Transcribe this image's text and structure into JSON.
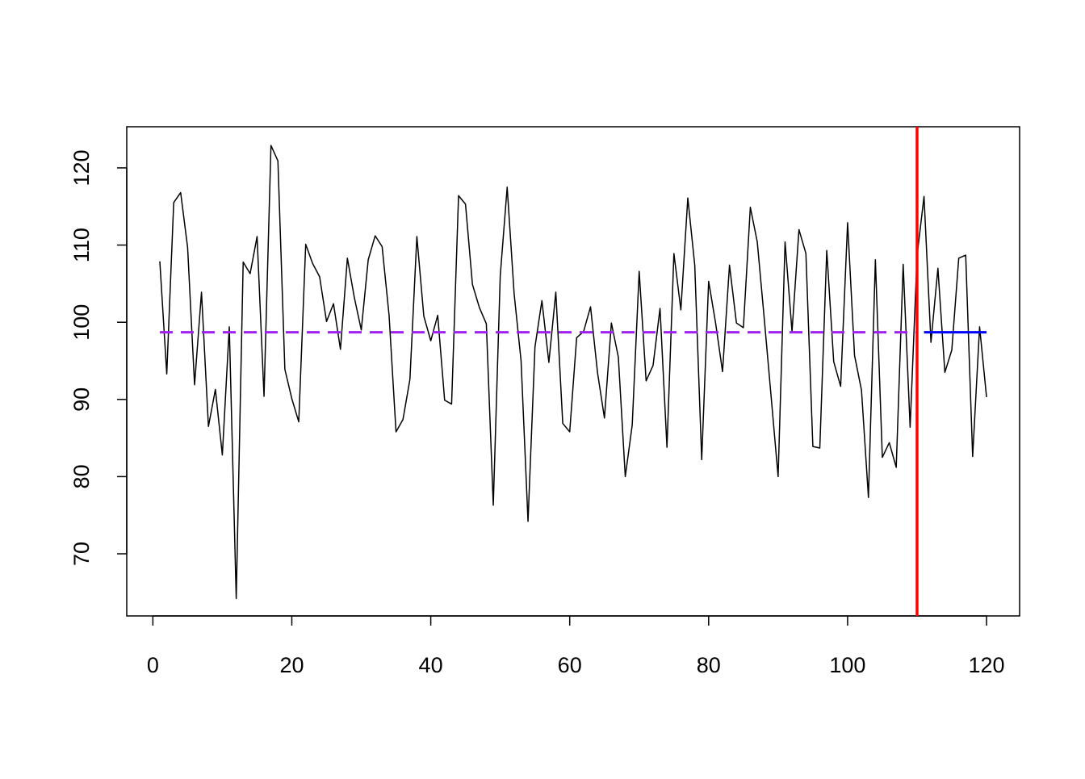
{
  "chart_data": {
    "type": "line",
    "x": [
      1,
      2,
      3,
      4,
      5,
      6,
      7,
      8,
      9,
      10,
      11,
      12,
      13,
      14,
      15,
      16,
      17,
      18,
      19,
      20,
      21,
      22,
      23,
      24,
      25,
      26,
      27,
      28,
      29,
      30,
      31,
      32,
      33,
      34,
      35,
      36,
      37,
      38,
      39,
      40,
      41,
      42,
      43,
      44,
      45,
      46,
      47,
      48,
      49,
      50,
      51,
      52,
      53,
      54,
      55,
      56,
      57,
      58,
      59,
      60,
      61,
      62,
      63,
      64,
      65,
      66,
      67,
      68,
      69,
      70,
      71,
      72,
      73,
      74,
      75,
      76,
      77,
      78,
      79,
      80,
      81,
      82,
      83,
      84,
      85,
      86,
      87,
      88,
      89,
      90,
      91,
      92,
      93,
      94,
      95,
      96,
      97,
      98,
      99,
      100,
      101,
      102,
      103,
      104,
      105,
      106,
      107,
      108,
      109,
      110,
      111,
      112,
      113,
      114,
      115,
      116,
      117,
      118,
      119,
      120
    ],
    "series": [
      {
        "color": "#000000",
        "width": 1.5,
        "dash": "solid",
        "values": [
          107.9,
          93.3,
          115.5,
          116.8,
          109.7,
          91.9,
          103.9,
          86.5,
          91.3,
          82.8,
          99.4,
          64.2,
          107.8,
          106.3,
          111.1,
          90.4,
          122.9,
          120.9,
          93.9,
          90.1,
          87.1,
          110.1,
          107.6,
          105.9,
          100.1,
          102.4,
          96.5,
          108.3,
          103.2,
          99.0,
          108.1,
          111.2,
          109.8,
          100.9,
          85.8,
          87.4,
          92.6,
          111.1,
          100.8,
          97.6,
          100.9,
          89.9,
          89.4,
          116.4,
          115.3,
          104.9,
          101.9,
          99.8,
          76.3,
          106.0,
          117.5,
          103.7,
          95.0,
          74.2,
          96.8,
          102.8,
          94.8,
          103.9,
          86.9,
          85.8,
          98.0,
          98.8,
          102.0,
          93.5,
          87.6,
          99.9,
          95.5,
          80.0,
          86.7,
          106.6,
          92.4,
          94.4,
          101.8,
          83.8,
          108.9,
          101.6,
          116.1,
          107.4,
          82.2,
          105.3,
          99.9,
          93.6,
          107.4,
          99.9,
          99.3,
          114.9,
          110.4,
          100.5,
          90.3,
          80.0,
          110.4,
          98.8,
          112.0,
          108.9,
          83.9,
          83.7,
          109.3,
          94.9,
          91.7,
          112.9,
          95.7,
          91.2,
          77.3,
          108.1,
          82.5,
          84.4,
          81.2,
          107.5,
          86.4,
          108.6,
          116.3,
          97.4,
          107.0,
          93.5,
          96.4,
          108.3,
          108.7,
          82.6,
          99.4,
          90.3
        ]
      },
      {
        "color": "#a020f0",
        "width": 3,
        "dash": "dashed",
        "values": [
          98.7,
          98.7,
          98.7,
          98.7,
          98.7,
          98.7,
          98.7,
          98.7,
          98.7,
          98.7,
          98.7,
          98.7,
          98.7,
          98.7,
          98.7,
          98.7,
          98.7,
          98.7,
          98.7,
          98.7,
          98.7,
          98.7,
          98.7,
          98.7,
          98.7,
          98.7,
          98.7,
          98.7,
          98.7,
          98.7,
          98.7,
          98.7,
          98.7,
          98.7,
          98.7,
          98.7,
          98.7,
          98.7,
          98.7,
          98.7,
          98.7,
          98.7,
          98.7,
          98.7,
          98.7,
          98.7,
          98.7,
          98.7,
          98.7,
          98.7,
          98.7,
          98.7,
          98.7,
          98.7,
          98.7,
          98.7,
          98.7,
          98.7,
          98.7,
          98.7,
          98.7,
          98.7,
          98.7,
          98.7,
          98.7,
          98.7,
          98.7,
          98.7,
          98.7,
          98.7,
          98.7,
          98.7,
          98.7,
          98.7,
          98.7,
          98.7,
          98.7,
          98.7,
          98.7,
          98.7,
          98.7,
          98.7,
          98.7,
          98.7,
          98.7,
          98.7,
          98.7,
          98.7,
          98.7,
          98.7,
          98.7,
          98.7,
          98.7,
          98.7,
          98.7,
          98.7,
          98.7,
          98.7,
          98.7,
          98.7,
          98.7,
          98.7,
          98.7,
          98.7,
          98.7,
          98.7,
          98.7,
          98.7,
          98.7,
          98.7,
          null,
          null,
          null,
          null,
          null,
          null,
          null,
          null,
          null,
          null
        ]
      },
      {
        "color": "#0000ff",
        "width": 3,
        "dash": "solid",
        "values": [
          null,
          null,
          null,
          null,
          null,
          null,
          null,
          null,
          null,
          null,
          null,
          null,
          null,
          null,
          null,
          null,
          null,
          null,
          null,
          null,
          null,
          null,
          null,
          null,
          null,
          null,
          null,
          null,
          null,
          null,
          null,
          null,
          null,
          null,
          null,
          null,
          null,
          null,
          null,
          null,
          null,
          null,
          null,
          null,
          null,
          null,
          null,
          null,
          null,
          null,
          null,
          null,
          null,
          null,
          null,
          null,
          null,
          null,
          null,
          null,
          null,
          null,
          null,
          null,
          null,
          null,
          null,
          null,
          null,
          null,
          null,
          null,
          null,
          null,
          null,
          null,
          null,
          null,
          null,
          null,
          null,
          null,
          null,
          null,
          null,
          null,
          null,
          null,
          null,
          null,
          null,
          null,
          null,
          null,
          null,
          null,
          null,
          null,
          null,
          null,
          null,
          null,
          null,
          null,
          null,
          null,
          null,
          null,
          null,
          null,
          98.7,
          98.7,
          98.7,
          98.7,
          98.7,
          98.7,
          98.7,
          98.7,
          98.7,
          98.7
        ]
      }
    ],
    "vline": 110,
    "vline_color": "#ff0000",
    "xlim": [
      -3.76,
      124.76
    ],
    "ylim": [
      61.95,
      125.33
    ],
    "xticks": [
      0,
      20,
      40,
      60,
      80,
      100,
      120
    ],
    "yticks": [
      70,
      80,
      90,
      100,
      110,
      120
    ]
  }
}
